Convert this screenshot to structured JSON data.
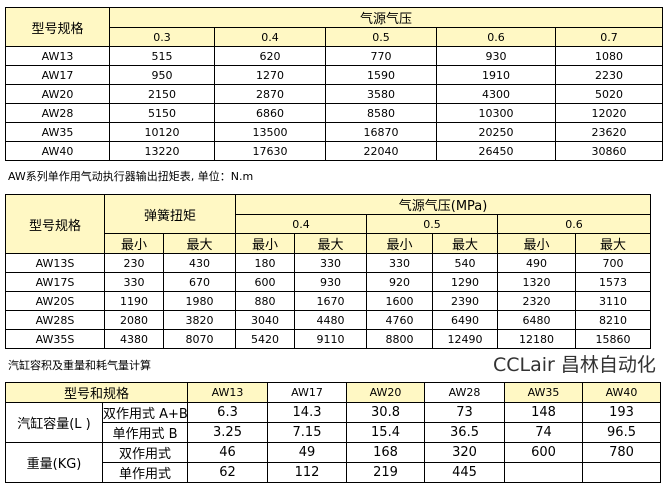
{
  "table1": {
    "model_header": "型号规格",
    "pressure_header": "气源气压",
    "pressures": [
      "0.3",
      "0.4",
      "0.5",
      "0.6",
      "0.7"
    ],
    "rows": [
      {
        "model": "AW13",
        "values": [
          "515",
          "620",
          "770",
          "930",
          "1080"
        ]
      },
      {
        "model": "AW17",
        "values": [
          "950",
          "1270",
          "1590",
          "1910",
          "2230"
        ]
      },
      {
        "model": "AW20",
        "values": [
          "2150",
          "2870",
          "3580",
          "4300",
          "5020"
        ]
      },
      {
        "model": "AW28",
        "values": [
          "5150",
          "6860",
          "8580",
          "10300",
          "12020"
        ]
      },
      {
        "model": "AW35",
        "values": [
          "10120",
          "13500",
          "16870",
          "20250",
          "23620"
        ]
      },
      {
        "model": "AW40",
        "values": [
          "13220",
          "17630",
          "22040",
          "26450",
          "30860"
        ]
      }
    ]
  },
  "caption2": "AW系列单作用气动执行器输出扭矩表, 单位：N.m",
  "table2": {
    "model_header": "型号规格",
    "spring_header": "弹簧扭矩",
    "pressure_header": "气源气压(MPa)",
    "pressures": [
      "0.4",
      "0.5",
      "0.6"
    ],
    "min": "最小",
    "max": "最大",
    "rows": [
      {
        "model": "AW13S",
        "values": [
          "230",
          "430",
          "180",
          "330",
          "330",
          "540",
          "490",
          "700"
        ]
      },
      {
        "model": "AW17S",
        "values": [
          "330",
          "670",
          "600",
          "930",
          "920",
          "1290",
          "1320",
          "1573"
        ]
      },
      {
        "model": "AW20S",
        "values": [
          "1190",
          "1980",
          "880",
          "1670",
          "1600",
          "2390",
          "2320",
          "3110"
        ]
      },
      {
        "model": "AW28S",
        "values": [
          "2080",
          "3820",
          "3040",
          "4480",
          "4760",
          "6490",
          "6480",
          "8210"
        ]
      },
      {
        "model": "AW35S",
        "values": [
          "4380",
          "8070",
          "5420",
          "9110",
          "8800",
          "12490",
          "12180",
          "15860"
        ]
      }
    ]
  },
  "caption3": "汽缸容积及重量和耗气量计算",
  "table3": {
    "header": "型号和规格",
    "models": [
      "AW13",
      "AW17",
      "AW20",
      "AW28",
      "AW35",
      "AW40"
    ],
    "volume_label": "汽缸容量(L )",
    "weight_label": "重量(KG)",
    "double_ab": "双作用式 A+B",
    "single_b": "单作用式 B",
    "double": "双作用式",
    "single": "单作用式",
    "volume_double": [
      "6.3",
      "14.3",
      "30.8",
      "73",
      "148",
      "193"
    ],
    "volume_single": [
      "3.25",
      "7.15",
      "15.4",
      "36.5",
      "74",
      "96.5"
    ],
    "weight_double": [
      "46",
      "49",
      "168",
      "320",
      "600",
      "780"
    ],
    "weight_single": [
      "62",
      "112",
      "219",
      "445",
      "",
      ""
    ]
  },
  "watermark": "CCLair 昌林自动化",
  "colors": {
    "header_bg": "#fff8c4",
    "border": "#000000"
  }
}
